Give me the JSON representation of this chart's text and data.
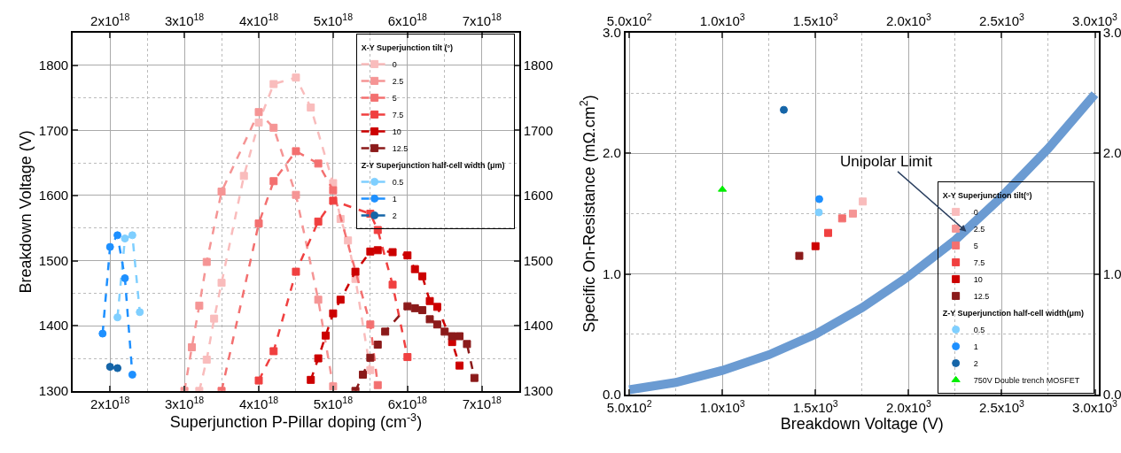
{
  "chart_data": [
    {
      "type": "line",
      "xlabel": "Superjunction P-Pillar doping (cm$^{-3}$)",
      "ylabel": "Breakdown Voltage (V)",
      "legend_title": [
        "X-Y Superjunction tilt (°)",
        "Z-Y Superjunction half-cell width (μm)"
      ],
      "legend": "top right",
      "grid": true,
      "line_style": "dashed",
      "xlim": [
        1.5e+18,
        7.5e+18
      ],
      "xticks": [
        {
          "value": 2e+18,
          "label": "2x10$^{18}$"
        },
        {
          "value": 3e+18,
          "label": "3x10$^{18}$"
        },
        {
          "value": 4e+18,
          "label": "4x10$^{18}$"
        },
        {
          "value": 5e+18,
          "label": "5x10$^{18}$"
        },
        {
          "value": 6e+18,
          "label": "6x10$^{18}$"
        },
        {
          "value": 7e+18,
          "label": "7x10$^{18}$"
        }
      ],
      "x2lim": [
        1.5e+18,
        7.5e+18
      ],
      "x2ticks": [
        {
          "value": 2e+18,
          "label": "2x10$^{18}$"
        },
        {
          "value": 3e+18,
          "label": "3x10$^{18}$"
        },
        {
          "value": 4e+18,
          "label": "4x10$^{18}$"
        },
        {
          "value": 5e+18,
          "label": "5x10$^{18}$"
        },
        {
          "value": 6e+18,
          "label": "6x10$^{18}$"
        },
        {
          "value": 7e+18,
          "label": "7x10$^{18}$"
        }
      ],
      "ylim": [
        1300,
        1850
      ],
      "yticks": [
        1300,
        1400,
        1500,
        1600,
        1700,
        1800
      ],
      "y2lim": [
        1300,
        1850
      ],
      "y2ticks": [
        1300,
        1400,
        1500,
        1600,
        1700,
        1800
      ],
      "series": [
        {
          "name": "0",
          "color": "#f9bcbc",
          "marker": "square",
          "x": [
            3.2e+18,
            3.3e+18,
            3.4e+18,
            3.5e+18,
            3.8e+18,
            4e+18,
            4.2e+18,
            4.5e+18,
            4.7e+18,
            5e+18,
            5.1e+18,
            5.2e+18,
            5.3e+18,
            5.5e+18
          ],
          "values": [
            1300,
            1348,
            1411,
            1466,
            1630,
            1712,
            1771,
            1781,
            1735,
            1619,
            1564,
            1531,
            1472,
            1332
          ]
        },
        {
          "name": "2.5",
          "color": "#f59595",
          "marker": "square",
          "x": [
            3e+18,
            3.1e+18,
            3.2e+18,
            3.3e+18,
            3.5e+18,
            4e+18,
            4.2e+18,
            4.5e+18,
            4.8e+18,
            5e+18
          ],
          "values": [
            1300,
            1367,
            1431,
            1498,
            1606,
            1728,
            1704,
            1601,
            1440,
            1307
          ]
        },
        {
          "name": "5",
          "color": "#f37070",
          "marker": "square",
          "x": [
            3.5e+18,
            4e+18,
            4.2e+18,
            4.5e+18,
            4.8e+18,
            5e+18,
            5.5e+18,
            5.6e+18
          ],
          "values": [
            1300,
            1557,
            1622,
            1668,
            1649,
            1608,
            1402,
            1309
          ]
        },
        {
          "name": "7.5",
          "color": "#f04040",
          "marker": "square",
          "x": [
            4e+18,
            4.2e+18,
            4.5e+18,
            4.8e+18,
            5e+18,
            5.5e+18,
            5.6e+18,
            5.8e+18,
            6e+18
          ],
          "values": [
            1316,
            1361,
            1483,
            1560,
            1592,
            1572,
            1547,
            1463,
            1352
          ]
        },
        {
          "name": "10",
          "color": "#cc0000",
          "marker": "square",
          "x": [
            4.7e+18,
            4.8e+18,
            4.9e+18,
            5e+18,
            5.1e+18,
            5.3e+18,
            5.5e+18,
            5.6e+18,
            5.8e+18,
            6e+18,
            6.1e+18,
            6.2e+18,
            6.3e+18,
            6.4e+18,
            6.6e+18,
            6.7e+18
          ],
          "values": [
            1317,
            1350,
            1385,
            1419,
            1440,
            1483,
            1514,
            1516,
            1513,
            1508,
            1487,
            1476,
            1438,
            1429,
            1375,
            1339
          ]
        },
        {
          "name": "12.5",
          "color": "#8b1a1a",
          "marker": "square",
          "x": [
            5.3e+18,
            5.4e+18,
            5.5e+18,
            5.6e+18,
            5.7e+18,
            6e+18,
            6.1e+18,
            6.2e+18,
            6.3e+18,
            6.4e+18,
            6.5e+18,
            6.6e+18,
            6.7e+18,
            6.8e+18,
            6.9e+18
          ],
          "values": [
            1300,
            1325,
            1351,
            1371,
            1391,
            1430,
            1427,
            1424,
            1410,
            1402,
            1391,
            1384,
            1384,
            1372,
            1320
          ]
        },
        {
          "name": "0.5",
          "color": "#7fcfff",
          "marker": "circle",
          "x": [
            2.1e+18,
            2.2e+18,
            2.3e+18,
            2.4e+18
          ],
          "values": [
            1413,
            1534,
            1539,
            1421
          ]
        },
        {
          "name": "1",
          "color": "#1e90ff",
          "marker": "circle",
          "x": [
            1.9e+18,
            2e+18,
            2.1e+18,
            2.2e+18,
            2.3e+18
          ],
          "values": [
            1388,
            1521,
            1539,
            1473,
            1325
          ]
        },
        {
          "name": "2",
          "color": "#1565a8",
          "marker": "circle",
          "x": [
            2e+18,
            2.1e+18
          ],
          "values": [
            1337,
            1335
          ]
        }
      ]
    },
    {
      "type": "scatter",
      "xlabel": "Breakdown Voltage (V)",
      "ylabel": "Specific On-Resistance (mΩ.cm$^{2}$)",
      "legend_title": [
        "X-Y Superjunction tilt(°)",
        "Z-Y Superjunction half-cell width(μm)"
      ],
      "legend": "bottom right",
      "grid": true,
      "xlim": [
        480,
        3020
      ],
      "xticks": [
        {
          "value": 500,
          "label": "5.0x10$^{2}$"
        },
        {
          "value": 1000,
          "label": "1.0x10$^{3}$"
        },
        {
          "value": 1500,
          "label": "1.5x10$^{3}$"
        },
        {
          "value": 2000,
          "label": "2.0x10$^{3}$"
        },
        {
          "value": 2500,
          "label": "2.5x10$^{3}$"
        },
        {
          "value": 3000,
          "label": "3.0x10$^{3}$"
        }
      ],
      "x2lim": [
        480,
        3020
      ],
      "x2ticks": [
        {
          "value": 500,
          "label": "5.0x10$^{2}$"
        },
        {
          "value": 1000,
          "label": "1.0x10$^{3}$"
        },
        {
          "value": 1500,
          "label": "1.5x10$^{3}$"
        },
        {
          "value": 2000,
          "label": "2.0x10$^{3}$"
        },
        {
          "value": 2500,
          "label": "2.5x10$^{3}$"
        },
        {
          "value": 3000,
          "label": "3.0x10$^{3}$"
        }
      ],
      "ylim": [
        0,
        3
      ],
      "yticks": [
        {
          "value": 0,
          "label": "0.0"
        },
        {
          "value": 1,
          "label": "1.0"
        },
        {
          "value": 2,
          "label": "2.0"
        },
        {
          "value": 3,
          "label": "3.0"
        }
      ],
      "y2lim": [
        0,
        3
      ],
      "y2ticks": [
        {
          "value": 0,
          "label": "0.0"
        },
        {
          "value": 1,
          "label": "1.0"
        },
        {
          "value": 2,
          "label": "2.0"
        },
        {
          "value": 3,
          "label": "3.0"
        }
      ],
      "annotations": [
        {
          "text": "Unipolar Limit",
          "x": 2310,
          "y": 1.35
        }
      ],
      "series": [
        {
          "type": "line",
          "color": "#6b9bd2",
          "marker": "none",
          "x": [
            500,
            750,
            1000,
            1250,
            1500,
            1750,
            2000,
            2250,
            2500,
            2750,
            3000
          ],
          "values": [
            0.04,
            0.1,
            0.2,
            0.33,
            0.5,
            0.72,
            0.98,
            1.28,
            1.64,
            2.04,
            2.49
          ]
        },
        {
          "name": "0",
          "color": "#f9bcbc",
          "marker": "square",
          "x": [
            1754
          ],
          "values": [
            1.6
          ]
        },
        {
          "name": "2.5",
          "color": "#f59595",
          "marker": "square",
          "x": [
            1701
          ],
          "values": [
            1.5
          ]
        },
        {
          "name": "5",
          "color": "#f37070",
          "marker": "square",
          "x": [
            1643
          ],
          "values": [
            1.46
          ]
        },
        {
          "name": "7.5",
          "color": "#f04040",
          "marker": "square",
          "x": [
            1568
          ],
          "values": [
            1.34
          ]
        },
        {
          "name": "10",
          "color": "#cc0000",
          "marker": "square",
          "x": [
            1500
          ],
          "values": [
            1.23
          ]
        },
        {
          "name": "12.5",
          "color": "#8b1a1a",
          "marker": "square",
          "x": [
            1413
          ],
          "values": [
            1.15
          ]
        },
        {
          "name": "0.5",
          "color": "#7fcfff",
          "marker": "circle",
          "x": [
            1518
          ],
          "values": [
            1.51
          ]
        },
        {
          "name": "1",
          "color": "#1e90ff",
          "marker": "circle",
          "x": [
            1520
          ],
          "values": [
            1.62
          ]
        },
        {
          "name": "2",
          "color": "#1565a8",
          "marker": "circle",
          "x": [
            1330
          ],
          "values": [
            2.36
          ]
        },
        {
          "name": "750V Double trench MOSFET",
          "color": "#00ee00",
          "marker": "triangle",
          "x": [
            1000
          ],
          "values": [
            1.7
          ]
        }
      ]
    }
  ]
}
